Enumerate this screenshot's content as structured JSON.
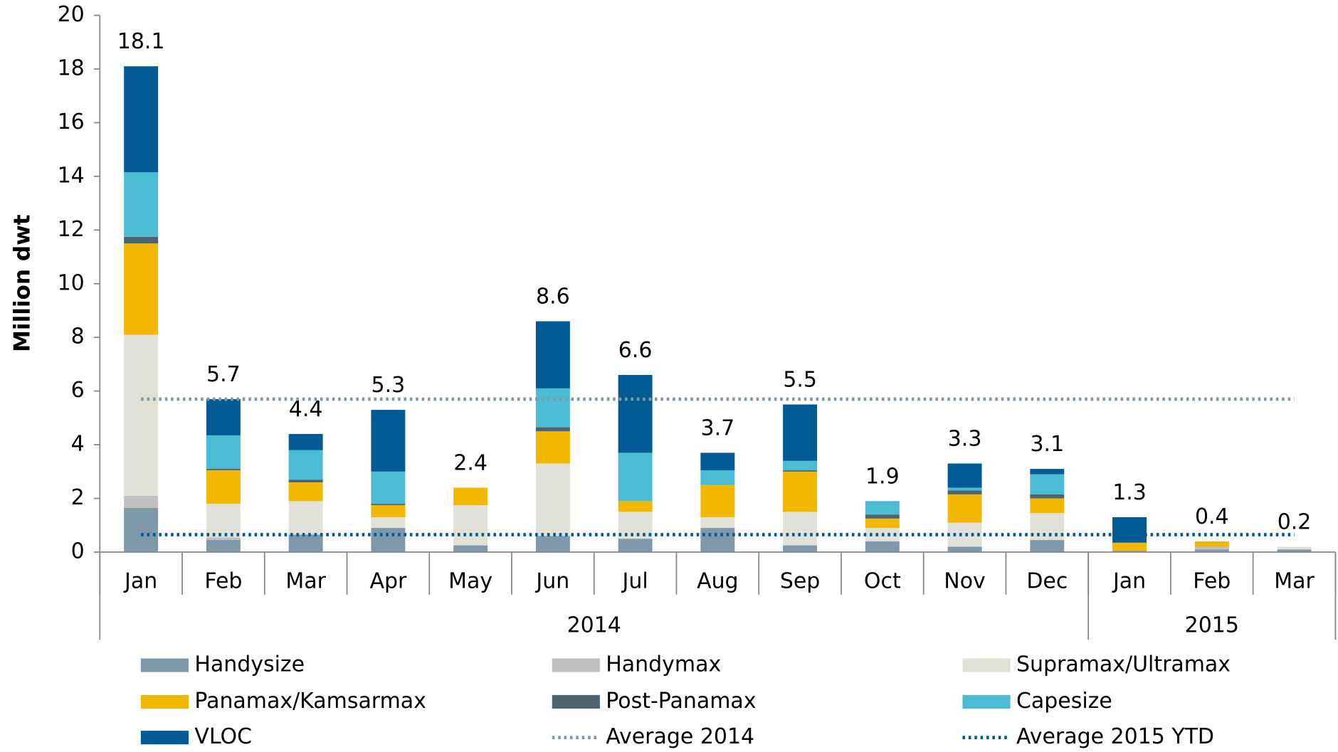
{
  "chart_data": {
    "type": "stacked-bar",
    "y_label": "Million dwt",
    "ylim": [
      0,
      20
    ],
    "yticks": [
      0,
      2,
      4,
      6,
      8,
      10,
      12,
      14,
      16,
      18,
      20
    ],
    "categories": [
      "Jan",
      "Feb",
      "Mar",
      "Apr",
      "May",
      "Jun",
      "Jul",
      "Aug",
      "Sep",
      "Oct",
      "Nov",
      "Dec",
      "Jan",
      "Feb",
      "Mar"
    ],
    "groups": [
      {
        "label": "2014",
        "count": 12
      },
      {
        "label": "2015",
        "count": 3
      }
    ],
    "series": [
      {
        "name": "Handysize",
        "color": "#7f99aa",
        "values": [
          1.65,
          0.45,
          0.65,
          0.9,
          0.25,
          0.6,
          0.5,
          0.9,
          0.25,
          0.4,
          0.2,
          0.45,
          0.05,
          0.1,
          0.1
        ]
      },
      {
        "name": "Handymax",
        "color": "#bfbfbf",
        "values": [
          0.45,
          0.1,
          0,
          0,
          0,
          0,
          0,
          0,
          0,
          0,
          0,
          0,
          0,
          0.1,
          0
        ]
      },
      {
        "name": "Supramax/Ultramax",
        "color": "#e1e1d7",
        "values": [
          6.0,
          1.25,
          1.25,
          0.4,
          1.5,
          2.7,
          1.0,
          0.4,
          1.25,
          0.5,
          0.9,
          1.0,
          0,
          0,
          0.1
        ]
      },
      {
        "name": "Panamax/Kamsarmax",
        "color": "#f2b700",
        "values": [
          3.4,
          1.25,
          0.7,
          0.45,
          0.65,
          1.2,
          0.4,
          1.2,
          1.5,
          0.35,
          1.05,
          0.55,
          0.3,
          0.2,
          0
        ]
      },
      {
        "name": "Post-Panamax",
        "color": "#4d6370",
        "values": [
          0.25,
          0.05,
          0.1,
          0.05,
          0,
          0.15,
          0,
          0,
          0.05,
          0.15,
          0.15,
          0.15,
          0,
          0,
          0
        ]
      },
      {
        "name": "Capesize",
        "color": "#4bbcd4",
        "values": [
          2.4,
          1.25,
          1.1,
          1.2,
          0,
          1.45,
          1.8,
          0.55,
          0.35,
          0.5,
          0.1,
          0.75,
          0,
          0,
          0
        ]
      },
      {
        "name": "VLOC",
        "color": "#005b94",
        "values": [
          3.95,
          1.35,
          0.6,
          2.3,
          0,
          2.5,
          2.9,
          0.65,
          2.1,
          0,
          0.9,
          0.2,
          0.95,
          0,
          0
        ]
      }
    ],
    "totals": [
      18.1,
      5.7,
      4.4,
      5.3,
      2.4,
      8.6,
      6.6,
      3.7,
      5.5,
      1.9,
      3.3,
      3.1,
      1.3,
      0.4,
      0.2
    ],
    "lines": [
      {
        "name": "Average 2014",
        "color": "#7f99aa",
        "value": 5.7
      },
      {
        "name": "Average 2015 YTD",
        "color": "#005b94",
        "value": 0.65
      }
    ]
  }
}
